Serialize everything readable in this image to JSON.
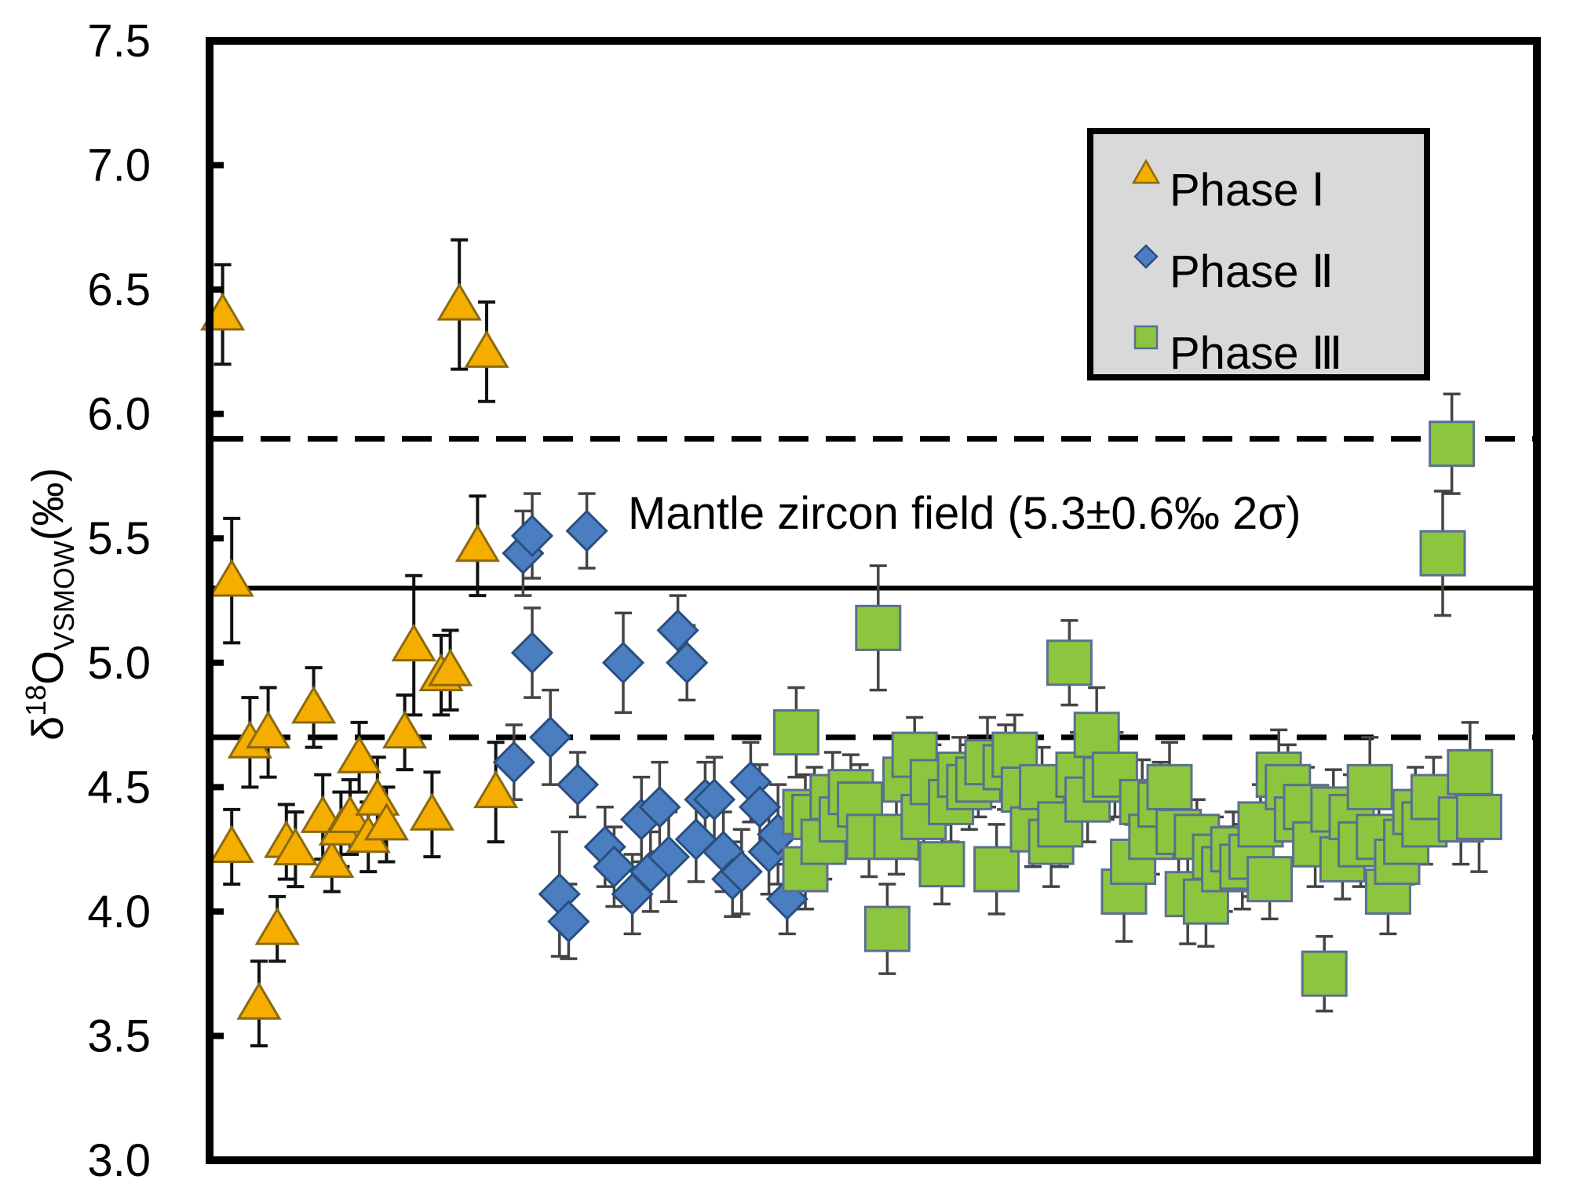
{
  "chart_data": {
    "type": "scatter",
    "title": "",
    "xlabel": "",
    "ylabel": {
      "prefix": "δ",
      "superscript": "18",
      "main": "O",
      "subscript": "VSMOW",
      "suffix": "(‰)"
    },
    "ylim": [
      3.0,
      7.5
    ],
    "xlim": [
      0,
      145
    ],
    "yticks": [
      "3.0",
      "3.5",
      "4.0",
      "4.5",
      "5.0",
      "5.5",
      "6.0",
      "6.5",
      "7.0",
      "7.5"
    ],
    "reference_lines": [
      {
        "name": "upper-dashed-line",
        "y": 5.9,
        "style": "dashed"
      },
      {
        "name": "mantle-mean-line",
        "y": 5.3,
        "style": "solid"
      },
      {
        "name": "lower-dashed-line",
        "y": 4.7,
        "style": "dashed"
      }
    ],
    "annotation": "Mantle zircon field (5.3±0.6‰ 2σ)",
    "legend_position": "top-right",
    "series": [
      {
        "name": "Phase Ⅰ",
        "marker": "triangle",
        "color": "#F5AE00",
        "edge": "#8A6A10",
        "errcolor": "#111111",
        "points": [
          [
            1,
            6.4,
            0.2
          ],
          [
            2,
            5.33,
            0.25
          ],
          [
            2,
            4.26,
            0.15
          ],
          [
            4,
            4.68,
            0.18
          ],
          [
            5,
            3.63,
            0.17
          ],
          [
            6,
            4.72,
            0.18
          ],
          [
            7,
            3.93,
            0.13
          ],
          [
            8,
            4.28,
            0.15
          ],
          [
            9,
            4.25,
            0.15
          ],
          [
            11,
            4.82,
            0.16
          ],
          [
            12,
            4.38,
            0.17
          ],
          [
            13,
            4.2,
            0.12
          ],
          [
            14,
            4.33,
            0.15
          ],
          [
            15,
            4.38,
            0.15
          ],
          [
            16,
            4.62,
            0.14
          ],
          [
            17,
            4.3,
            0.14
          ],
          [
            18,
            4.45,
            0.17
          ],
          [
            19,
            4.35,
            0.15
          ],
          [
            21,
            4.72,
            0.15
          ],
          [
            22,
            5.07,
            0.28
          ],
          [
            24,
            4.39,
            0.17
          ],
          [
            25,
            4.95,
            0.16
          ],
          [
            26,
            4.97,
            0.16
          ],
          [
            27,
            6.44,
            0.26
          ],
          [
            29,
            5.47,
            0.2
          ],
          [
            30,
            6.25,
            0.2
          ],
          [
            31,
            4.48,
            0.2
          ]
        ]
      },
      {
        "name": "Phase Ⅱ",
        "marker": "diamond",
        "color": "#4A7EC1",
        "edge": "#2A4E7E",
        "errcolor": "#444444",
        "points": [
          [
            33,
            4.6,
            0.15
          ],
          [
            34,
            5.44,
            0.17
          ],
          [
            35,
            5.51,
            0.17
          ],
          [
            35,
            5.04,
            0.18
          ],
          [
            37,
            4.7,
            0.19
          ],
          [
            38,
            4.07,
            0.25
          ],
          [
            39,
            3.96,
            0.15
          ],
          [
            40,
            4.51,
            0.13
          ],
          [
            41,
            5.53,
            0.15
          ],
          [
            43,
            4.26,
            0.16
          ],
          [
            44,
            4.18,
            0.16
          ],
          [
            45,
            5.0,
            0.2
          ],
          [
            46,
            4.07,
            0.16
          ],
          [
            47,
            4.37,
            0.17
          ],
          [
            48,
            4.16,
            0.16
          ],
          [
            49,
            4.42,
            0.18
          ],
          [
            50,
            4.22,
            0.18
          ],
          [
            51,
            5.13,
            0.14
          ],
          [
            52,
            5.0,
            0.15
          ],
          [
            53,
            4.29,
            0.17
          ],
          [
            54,
            4.45,
            0.15
          ],
          [
            55,
            4.45,
            0.17
          ],
          [
            56,
            4.24,
            0.16
          ],
          [
            57,
            4.13,
            0.15
          ],
          [
            58,
            4.16,
            0.17
          ],
          [
            59,
            4.52,
            0.16
          ],
          [
            60,
            4.42,
            0.17
          ],
          [
            61,
            4.24,
            0.17
          ],
          [
            62,
            4.31,
            0.2
          ],
          [
            63,
            4.05,
            0.14
          ]
        ]
      },
      {
        "name": "Phase Ⅲ",
        "marker": "square",
        "color": "#8CC63F",
        "edge": "#5B6F8E",
        "errcolor": "#444444",
        "points": [
          [
            64,
            4.72,
            0.18
          ],
          [
            65,
            4.4,
            0.15
          ],
          [
            65,
            4.17,
            0.16
          ],
          [
            66,
            4.38,
            0.2
          ],
          [
            67,
            4.28,
            0.15
          ],
          [
            68,
            4.46,
            0.18
          ],
          [
            69,
            4.37,
            0.15
          ],
          [
            70,
            4.48,
            0.15
          ],
          [
            71,
            4.43,
            0.16
          ],
          [
            72,
            4.3,
            0.16
          ],
          [
            73,
            5.14,
            0.25
          ],
          [
            74,
            3.93,
            0.18
          ],
          [
            75,
            4.3,
            0.15
          ],
          [
            76,
            4.53,
            0.17
          ],
          [
            77,
            4.63,
            0.15
          ],
          [
            78,
            4.38,
            0.17
          ],
          [
            79,
            4.52,
            0.15
          ],
          [
            80,
            4.19,
            0.16
          ],
          [
            81,
            4.44,
            0.16
          ],
          [
            82,
            4.55,
            0.15
          ],
          [
            83,
            4.5,
            0.17
          ],
          [
            84,
            4.53,
            0.15
          ],
          [
            85,
            4.6,
            0.18
          ],
          [
            86,
            4.17,
            0.18
          ],
          [
            87,
            4.58,
            0.17
          ],
          [
            88,
            4.63,
            0.16
          ],
          [
            89,
            4.49,
            0.18
          ],
          [
            90,
            4.33,
            0.15
          ],
          [
            91,
            4.5,
            0.16
          ],
          [
            92,
            4.28,
            0.18
          ],
          [
            93,
            4.35,
            0.17
          ],
          [
            94,
            5.0,
            0.17
          ],
          [
            95,
            4.55,
            0.17
          ],
          [
            96,
            4.45,
            0.17
          ],
          [
            97,
            4.71,
            0.19
          ],
          [
            98,
            4.53,
            0.16
          ],
          [
            99,
            4.55,
            0.17
          ],
          [
            100,
            4.08,
            0.2
          ],
          [
            101,
            4.2,
            0.15
          ],
          [
            102,
            4.44,
            0.17
          ],
          [
            103,
            4.3,
            0.15
          ],
          [
            104,
            4.43,
            0.17
          ],
          [
            105,
            4.5,
            0.18
          ],
          [
            106,
            4.32,
            0.17
          ],
          [
            107,
            4.07,
            0.2
          ],
          [
            108,
            4.3,
            0.15
          ],
          [
            109,
            4.04,
            0.18
          ],
          [
            110,
            4.22,
            0.16
          ],
          [
            111,
            4.17,
            0.17
          ],
          [
            112,
            4.25,
            0.15
          ],
          [
            113,
            4.18,
            0.17
          ],
          [
            114,
            4.22,
            0.16
          ],
          [
            115,
            4.35,
            0.16
          ],
          [
            116,
            4.13,
            0.16
          ],
          [
            117,
            4.55,
            0.18
          ],
          [
            118,
            4.5,
            0.17
          ],
          [
            119,
            4.37,
            0.16
          ],
          [
            120,
            4.42,
            0.16
          ],
          [
            121,
            4.27,
            0.17
          ],
          [
            122,
            3.75,
            0.15
          ],
          [
            123,
            4.41,
            0.16
          ],
          [
            124,
            4.21,
            0.16
          ],
          [
            125,
            4.38,
            0.17
          ],
          [
            126,
            4.27,
            0.17
          ],
          [
            127,
            4.5,
            0.2
          ],
          [
            128,
            4.3,
            0.15
          ],
          [
            129,
            4.08,
            0.17
          ],
          [
            130,
            4.2,
            0.17
          ],
          [
            131,
            4.28,
            0.17
          ],
          [
            132,
            4.4,
            0.18
          ],
          [
            133,
            4.35,
            0.16
          ],
          [
            134,
            4.46,
            0.16
          ],
          [
            135,
            5.44,
            0.25
          ],
          [
            136,
            5.88,
            0.2
          ],
          [
            137,
            4.37,
            0.18
          ],
          [
            138,
            4.56,
            0.2
          ],
          [
            139,
            4.38,
            0.22
          ]
        ]
      }
    ]
  }
}
